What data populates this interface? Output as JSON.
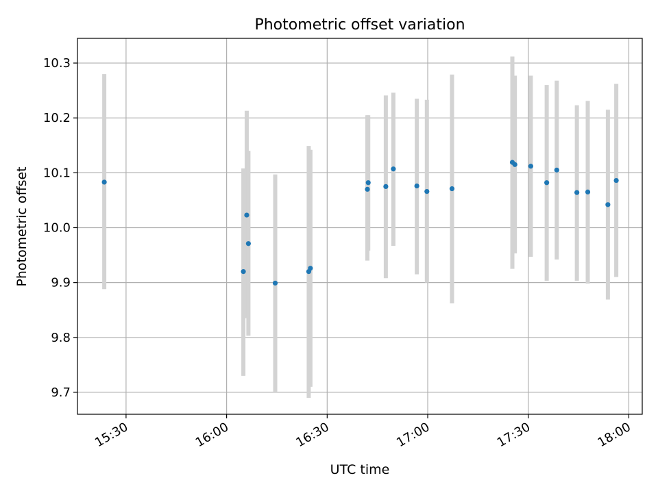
{
  "chart_data": {
    "type": "scatter",
    "title": "Photometric offset variation",
    "xlabel": "UTC time",
    "ylabel": "Photometric offset",
    "x_ticks": [
      "15:30",
      "16:00",
      "16:30",
      "17:00",
      "17:30",
      "18:00"
    ],
    "y_ticks": [
      "9.7",
      "9.8",
      "9.9",
      "10.0",
      "10.1",
      "10.2",
      "10.3"
    ],
    "xlim": [
      "15:15:30",
      "18:04:00"
    ],
    "ylim": [
      9.66,
      10.345
    ],
    "grid": true,
    "colors": {
      "point": "#1f77b4",
      "errorbar": "#d3d3d3",
      "grid": "#b0b0b0"
    },
    "points": [
      {
        "x": "15:23:30",
        "y": 10.083,
        "ymin": 9.888,
        "ymax": 10.28
      },
      {
        "x": "16:05:00",
        "y": 9.92,
        "ymin": 9.73,
        "ymax": 10.108
      },
      {
        "x": "16:06:00",
        "y": 10.023,
        "ymin": 9.835,
        "ymax": 10.213
      },
      {
        "x": "16:06:30",
        "y": 9.971,
        "ymin": 9.803,
        "ymax": 10.14
      },
      {
        "x": "16:14:30",
        "y": 9.899,
        "ymin": 9.7,
        "ymax": 10.097
      },
      {
        "x": "16:24:30",
        "y": 9.92,
        "ymin": 9.69,
        "ymax": 10.149
      },
      {
        "x": "16:25:00",
        "y": 9.926,
        "ymin": 9.71,
        "ymax": 10.142
      },
      {
        "x": "16:42:00",
        "y": 10.07,
        "ymin": 9.94,
        "ymax": 10.205
      },
      {
        "x": "16:42:15",
        "y": 10.082,
        "ymin": 9.958,
        "ymax": 10.205
      },
      {
        "x": "16:47:30",
        "y": 10.075,
        "ymin": 9.908,
        "ymax": 10.241
      },
      {
        "x": "16:49:45",
        "y": 10.107,
        "ymin": 9.967,
        "ymax": 10.246
      },
      {
        "x": "16:56:45",
        "y": 10.076,
        "ymin": 9.915,
        "ymax": 10.235
      },
      {
        "x": "16:59:45",
        "y": 10.066,
        "ymin": 9.9,
        "ymax": 10.233
      },
      {
        "x": "17:07:15",
        "y": 10.071,
        "ymin": 9.862,
        "ymax": 10.279
      },
      {
        "x": "17:25:15",
        "y": 10.119,
        "ymin": 9.925,
        "ymax": 10.312
      },
      {
        "x": "17:26:00",
        "y": 10.115,
        "ymin": 9.953,
        "ymax": 10.277
      },
      {
        "x": "17:30:45",
        "y": 10.112,
        "ymin": 9.947,
        "ymax": 10.277
      },
      {
        "x": "17:35:30",
        "y": 10.082,
        "ymin": 9.903,
        "ymax": 10.26
      },
      {
        "x": "17:38:30",
        "y": 10.105,
        "ymin": 9.942,
        "ymax": 10.268
      },
      {
        "x": "17:44:30",
        "y": 10.064,
        "ymin": 9.903,
        "ymax": 10.223
      },
      {
        "x": "17:47:45",
        "y": 10.065,
        "ymin": 9.898,
        "ymax": 10.231
      },
      {
        "x": "17:53:45",
        "y": 10.042,
        "ymin": 9.869,
        "ymax": 10.215
      },
      {
        "x": "17:56:15",
        "y": 10.086,
        "ymin": 9.91,
        "ymax": 10.262
      }
    ]
  }
}
